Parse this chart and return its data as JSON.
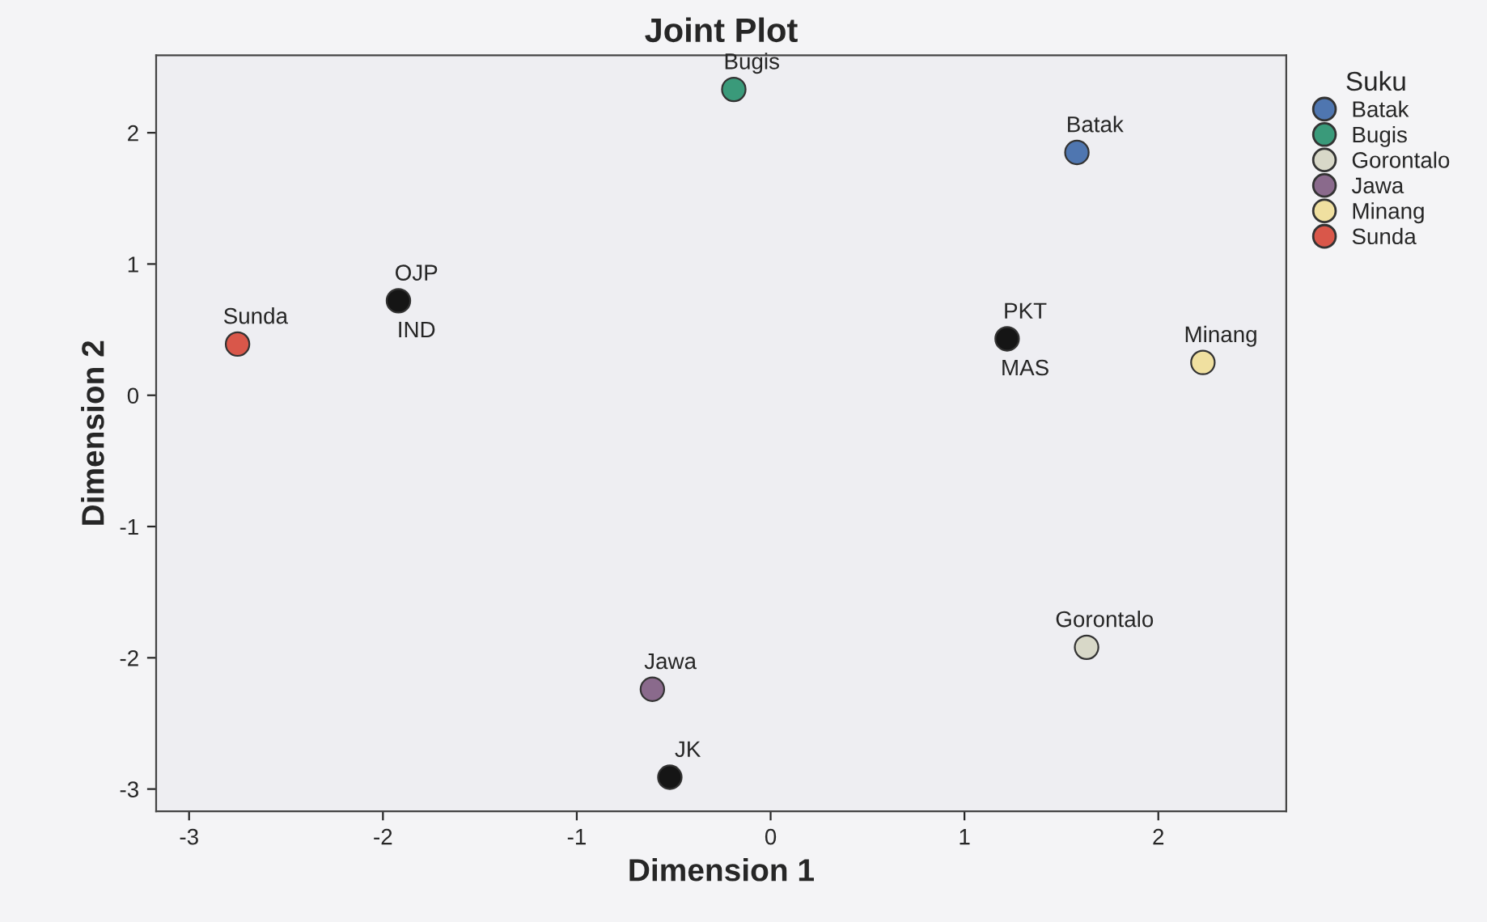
{
  "chart_data": {
    "type": "scatter",
    "title": "Joint Plot",
    "xlabel": "Dimension 1",
    "ylabel": "Dimension 2",
    "legend_title": "Suku",
    "series": [
      {
        "name": "Batak",
        "color": "#4f76b0",
        "x": [
          1.58
        ],
        "values": [
          1.85
        ]
      },
      {
        "name": "Bugis",
        "color": "#3a9a7a",
        "x": [
          -0.19
        ],
        "values": [
          2.33
        ]
      },
      {
        "name": "Gorontalo",
        "color": "#d8d8c8",
        "x": [
          1.63
        ],
        "values": [
          -1.92
        ]
      },
      {
        "name": "Jawa",
        "color": "#8a6a8c",
        "x": [
          -0.61
        ],
        "values": [
          -2.24
        ]
      },
      {
        "name": "Minang",
        "color": "#f0e0a0",
        "x": [
          2.23
        ],
        "values": [
          0.25
        ]
      },
      {
        "name": "Sunda",
        "color": "#d9574a",
        "x": [
          -2.75
        ],
        "values": [
          0.39
        ]
      },
      {
        "color": "#151515",
        "x": [
          -1.92,
          1.22,
          -0.52
        ],
        "values": [
          0.72,
          0.43,
          -2.91
        ]
      }
    ],
    "annotations": [
      {
        "text": "Batak",
        "x": 1.58,
        "y": 1.85
      },
      {
        "text": "Bugis",
        "x": -0.19,
        "y": 2.33
      },
      {
        "text": "Gorontalo",
        "x": 1.63,
        "y": -1.92
      },
      {
        "text": "Jawa",
        "x": -0.61,
        "y": -2.24
      },
      {
        "text": "Minang",
        "x": 2.23,
        "y": 0.25
      },
      {
        "text": "Sunda",
        "x": -2.75,
        "y": 0.39
      },
      {
        "text": "OJP",
        "x": -1.92,
        "y": 0.72
      },
      {
        "text": "IND",
        "x": -1.92,
        "y": 0.72
      },
      {
        "text": "PKT",
        "x": 1.22,
        "y": 0.43
      },
      {
        "text": "MAS",
        "x": 1.22,
        "y": 0.43
      },
      {
        "text": "JK",
        "x": -0.52,
        "y": -2.91
      }
    ],
    "xlim": [
      -3.17,
      2.66
    ],
    "ylim": [
      -3.17,
      2.59
    ],
    "xticks": [
      -3,
      -2,
      -1,
      0,
      1,
      2
    ],
    "yticks": [
      -3,
      -2,
      -1,
      0,
      1,
      2
    ],
    "marker": "circle",
    "grid": false,
    "legend": "top right"
  }
}
